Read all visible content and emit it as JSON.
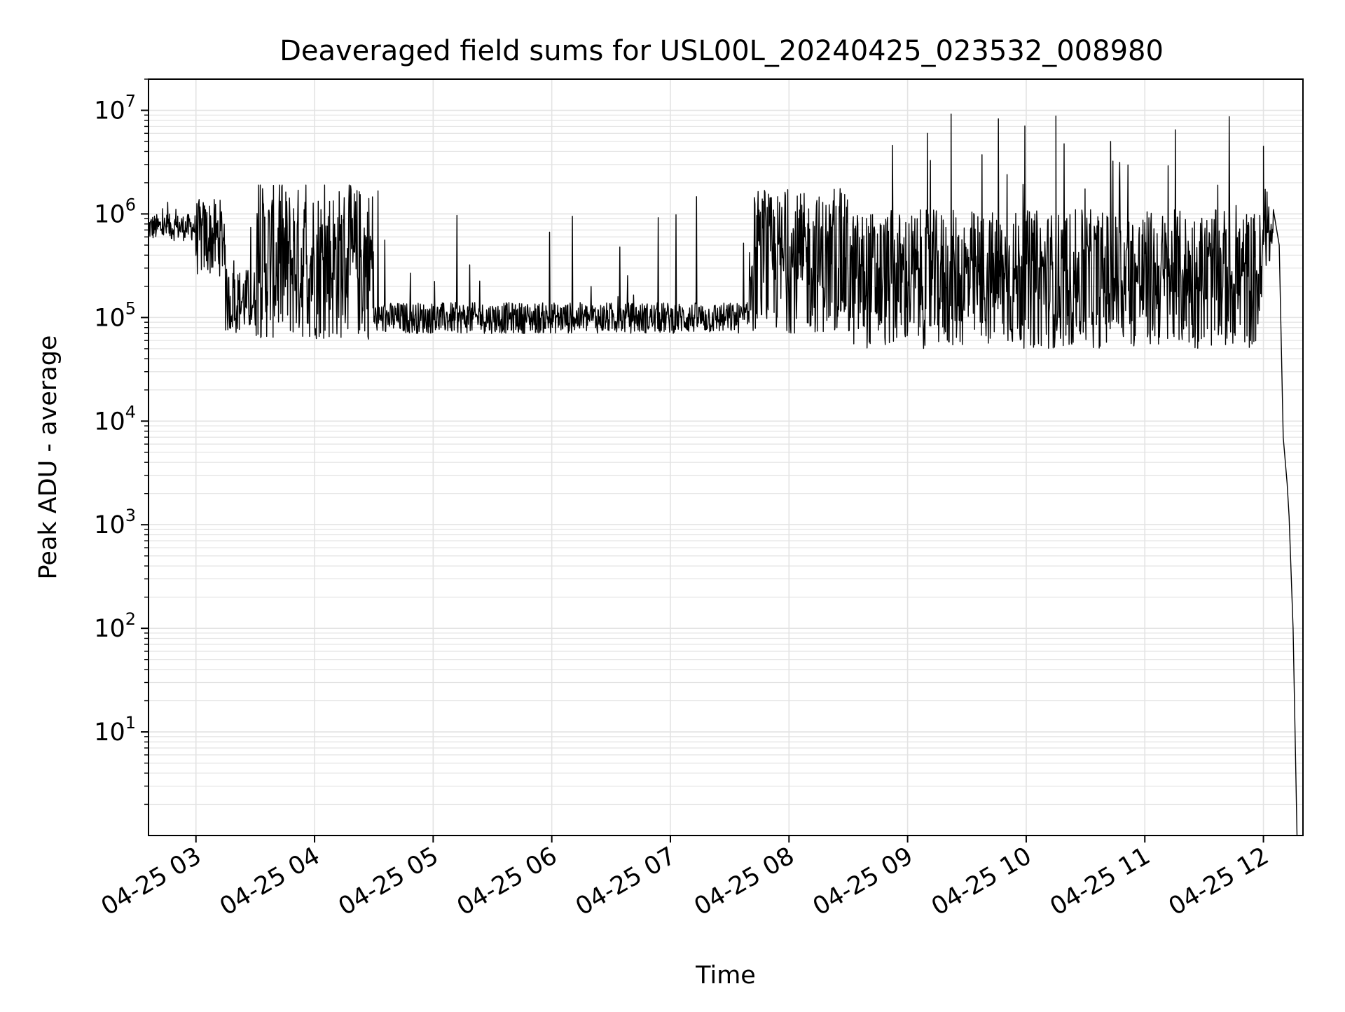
{
  "chart_data": {
    "type": "line",
    "title": "Deaveraged field sums for USL00L_20240425_023532_008980",
    "xlabel": "Time",
    "ylabel": "Peak ADU - average",
    "y_scale": "log",
    "ylim": [
      1,
      20000000
    ],
    "xlim": [
      "04-25 02:36",
      "04-25 12:20"
    ],
    "grid": true,
    "grid_minor": true,
    "x_ticks": [
      "04-25 03",
      "04-25 04",
      "04-25 05",
      "04-25 06",
      "04-25 07",
      "04-25 08",
      "04-25 09",
      "04-25 10",
      "04-25 11",
      "04-25 12"
    ],
    "x_tick_hours": [
      3,
      4,
      5,
      6,
      7,
      8,
      9,
      10,
      11,
      12
    ],
    "y_ticks": [
      {
        "value": 10,
        "base": "10",
        "exp": "1"
      },
      {
        "value": 100,
        "base": "10",
        "exp": "2"
      },
      {
        "value": 1000,
        "base": "10",
        "exp": "3"
      },
      {
        "value": 10000,
        "base": "10",
        "exp": "4"
      },
      {
        "value": 100000,
        "base": "10",
        "exp": "5"
      },
      {
        "value": 1000000,
        "base": "10",
        "exp": "6"
      },
      {
        "value": 10000000,
        "base": "10",
        "exp": "7"
      }
    ],
    "line_color": "#000000",
    "segments_approx": [
      {
        "start": "04-25 02:36",
        "end": "04-25 03:00",
        "low": 550000,
        "high": 1000000,
        "spike": 1500000
      },
      {
        "start": "04-25 03:00",
        "end": "04-25 03:15",
        "low": 250000,
        "high": 1400000,
        "spike": 2400000
      },
      {
        "start": "04-25 03:15",
        "end": "04-25 03:30",
        "low": 70000,
        "high": 300000,
        "spike": 1000000
      },
      {
        "start": "04-25 03:30",
        "end": "04-25 04:30",
        "low": 60000,
        "high": 1900000,
        "spike": 1900000
      },
      {
        "start": "04-25 04:30",
        "end": "04-25 07:40",
        "low": 70000,
        "high": 140000,
        "spike": 2000000
      },
      {
        "start": "04-25 07:40",
        "end": "04-25 08:30",
        "low": 70000,
        "high": 1600000,
        "spike": 1800000
      },
      {
        "start": "04-25 08:30",
        "end": "04-25 12:00",
        "low": 50000,
        "high": 1100000,
        "spike": 9200000
      },
      {
        "start": "04-25 12:00",
        "end": "04-25 12:05",
        "low": 300000,
        "high": 1200000,
        "spike": 4500000
      },
      {
        "start": "04-25 12:05",
        "end": "04-25 12:17",
        "low": 1,
        "high": 1000000,
        "spike": 1000000
      }
    ],
    "notable_spikes": [
      {
        "time": "04-25 09:10",
        "value": 6000000
      },
      {
        "time": "04-25 09:22",
        "value": 9200000
      },
      {
        "time": "04-25 10:15",
        "value": 8800000
      },
      {
        "time": "04-25 12:00",
        "value": 4500000
      }
    ],
    "tail_points": [
      {
        "time": "04-25 12:05",
        "value": 1100000
      },
      {
        "time": "04-25 12:08",
        "value": 500000
      },
      {
        "time": "04-25 12:10",
        "value": 7000
      },
      {
        "time": "04-25 12:12",
        "value": 2500
      },
      {
        "time": "04-25 12:13",
        "value": 1200
      },
      {
        "time": "04-25 12:15",
        "value": 100
      },
      {
        "time": "04-25 12:17",
        "value": 1
      }
    ]
  }
}
